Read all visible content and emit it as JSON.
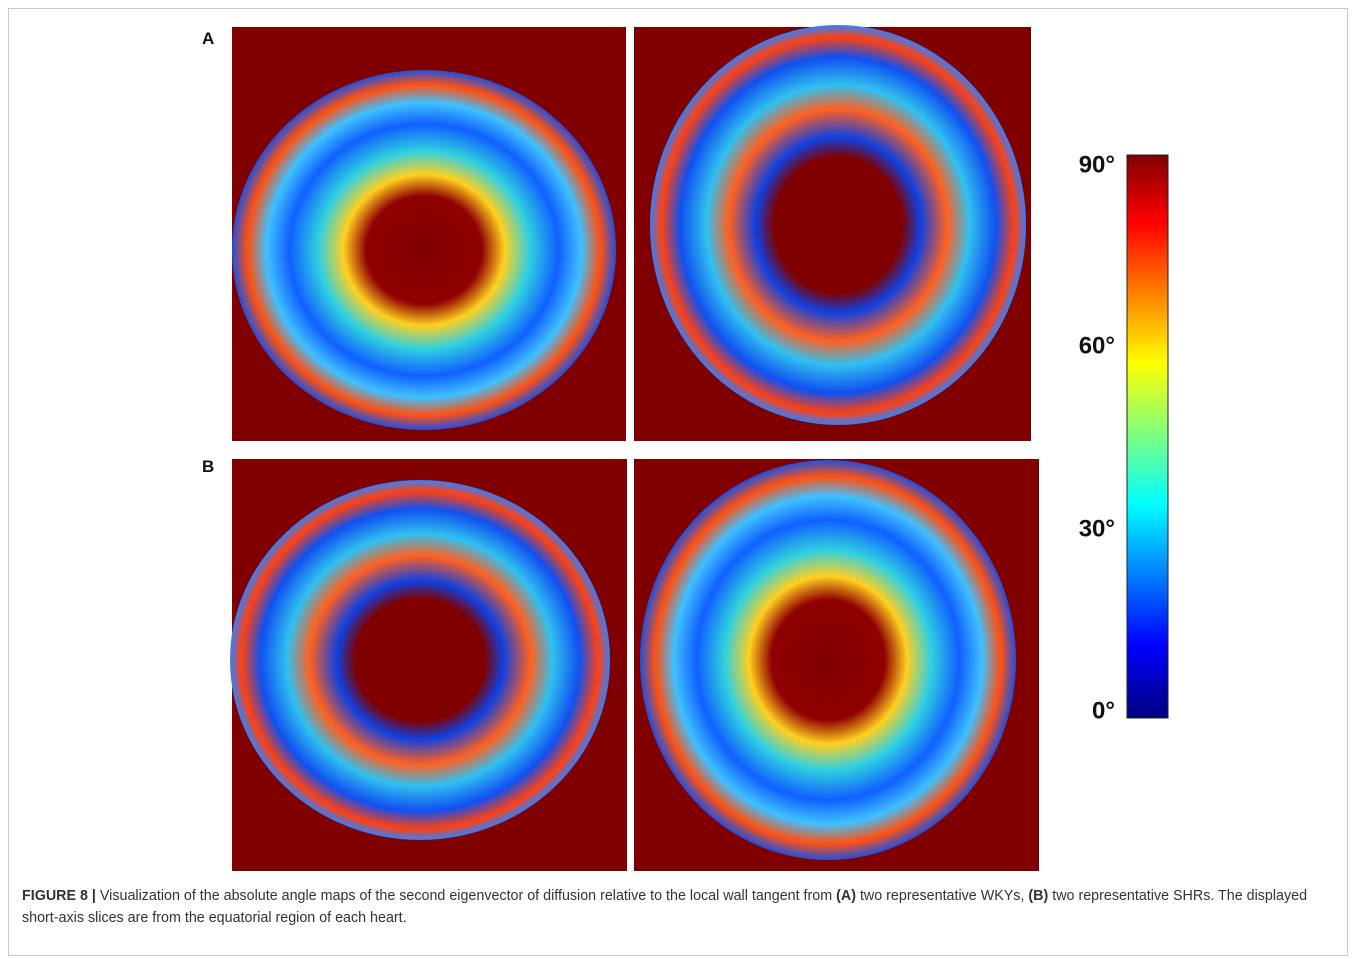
{
  "figure": {
    "panels": [
      {
        "label": "A"
      },
      {
        "label": "B"
      }
    ],
    "colorbar": {
      "labels": [
        "90°",
        "60°",
        "30°",
        "0°"
      ]
    },
    "caption": {
      "parts": [
        {
          "text": "FIGURE 8 |",
          "bold": true
        },
        {
          "text": " Visualization of the absolute angle maps of the second eigenvector of diffusion relative to the local wall tangent from ",
          "bold": false
        },
        {
          "text": "(A)",
          "bold": true
        },
        {
          "text": " two representative WKYs, ",
          "bold": false
        },
        {
          "text": "(B)",
          "bold": true
        },
        {
          "text": " two representative SHRs. The displayed short-axis slices are from the equatorial region of each heart.",
          "bold": false
        }
      ]
    }
  }
}
